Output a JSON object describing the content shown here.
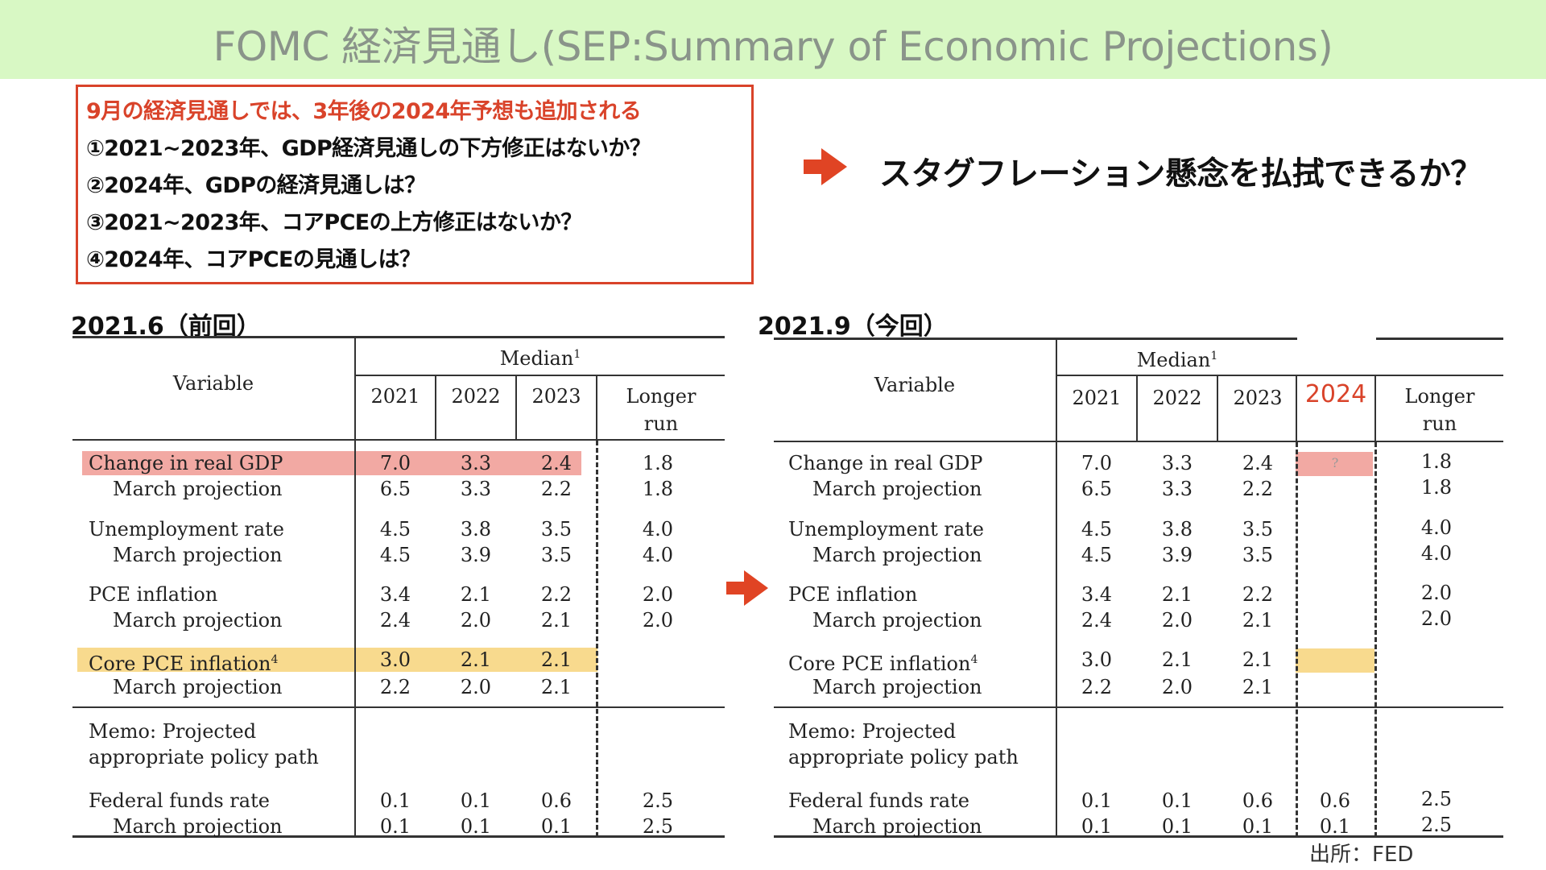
{
  "banner": {
    "title": "FOMC 経済見通し(SEP:Summary of Economic Projections)"
  },
  "questions": {
    "lead": "9月の経済見通しでは、3年後の2024年予想も追加される",
    "q1": "①2021~2023年、GDP経済見通しの下方修正はないか？",
    "q2": "②2024年、GDPの経済見通しは？",
    "q3": "③2021~2023年、コアPCEの上方修正はないか？",
    "q4": "④2024年、コアPCEの見通しは？"
  },
  "callout": "スタグフレーション懸念を払拭できるか？",
  "left_table": {
    "label": "2021.6（前回）",
    "header": {
      "variable": "Variable",
      "median": "Median",
      "median_sup": "1",
      "years": [
        "2021",
        "2022",
        "2023"
      ],
      "longer1": "Longer",
      "longer2": "run"
    },
    "rows": [
      {
        "label": "Change in real GDP",
        "vals": [
          "7.0",
          "3.3",
          "2.4"
        ],
        "lr": "1.8"
      },
      {
        "label": "March projection",
        "vals": [
          "6.5",
          "3.3",
          "2.2"
        ],
        "lr": "1.8"
      },
      {
        "label": "Unemployment rate",
        "vals": [
          "4.5",
          "3.8",
          "3.5"
        ],
        "lr": "4.0"
      },
      {
        "label": "March projection",
        "vals": [
          "4.5",
          "3.9",
          "3.5"
        ],
        "lr": "4.0"
      },
      {
        "label": "PCE inflation",
        "vals": [
          "3.4",
          "2.1",
          "2.2"
        ],
        "lr": "2.0"
      },
      {
        "label": "March projection",
        "vals": [
          "2.4",
          "2.0",
          "2.1"
        ],
        "lr": "2.0"
      },
      {
        "label": "Core PCE inflation",
        "sup": "4",
        "vals": [
          "3.0",
          "2.1",
          "2.1"
        ],
        "lr": ""
      },
      {
        "label": "March projection",
        "vals": [
          "2.2",
          "2.0",
          "2.1"
        ],
        "lr": ""
      },
      {
        "label": "Federal funds rate",
        "vals": [
          "0.1",
          "0.1",
          "0.6"
        ],
        "lr": "2.5"
      },
      {
        "label": "March projection",
        "vals": [
          "0.1",
          "0.1",
          "0.1"
        ],
        "lr": "2.5"
      }
    ],
    "memo1": "Memo: Projected",
    "memo2": "appropriate policy path"
  },
  "right_table": {
    "label": "2021.9（今回）",
    "header": {
      "variable": "Variable",
      "median": "Median",
      "median_sup": "1",
      "years": [
        "2021",
        "2022",
        "2023"
      ],
      "year_new": "2024",
      "longer1": "Longer",
      "longer2": "run"
    },
    "rows": [
      {
        "label": "Change in real GDP",
        "vals": [
          "7.0",
          "3.3",
          "2.4"
        ],
        "v2024": "?",
        "lr": "1.8"
      },
      {
        "label": "March projection",
        "vals": [
          "6.5",
          "3.3",
          "2.2"
        ],
        "v2024": "",
        "lr": "1.8"
      },
      {
        "label": "Unemployment rate",
        "vals": [
          "4.5",
          "3.8",
          "3.5"
        ],
        "v2024": "",
        "lr": "4.0"
      },
      {
        "label": "March projection",
        "vals": [
          "4.5",
          "3.9",
          "3.5"
        ],
        "v2024": "",
        "lr": "4.0"
      },
      {
        "label": "PCE inflation",
        "vals": [
          "3.4",
          "2.1",
          "2.2"
        ],
        "v2024": "",
        "lr": "2.0"
      },
      {
        "label": "March projection",
        "vals": [
          "2.4",
          "2.0",
          "2.1"
        ],
        "v2024": "",
        "lr": "2.0"
      },
      {
        "label": "Core PCE inflation",
        "sup": "4",
        "vals": [
          "3.0",
          "2.1",
          "2.1"
        ],
        "v2024": "",
        "lr": ""
      },
      {
        "label": "March projection",
        "vals": [
          "2.2",
          "2.0",
          "2.1"
        ],
        "v2024": "",
        "lr": ""
      },
      {
        "label": "Federal funds rate",
        "vals": [
          "0.1",
          "0.1",
          "0.6"
        ],
        "v2024": "0.6",
        "lr": "2.5"
      },
      {
        "label": "March projection",
        "vals": [
          "0.1",
          "0.1",
          "0.1"
        ],
        "v2024": "0.1",
        "lr": "2.5"
      }
    ],
    "memo1": "Memo: Projected",
    "memo2": "appropriate policy path"
  },
  "source": "出所：FED",
  "colors": {
    "accent_red": "#d9432a",
    "banner_bg": "#d8f8c4",
    "highlight_pink": "#f2a9a3",
    "highlight_yellow": "#f8da8e"
  }
}
